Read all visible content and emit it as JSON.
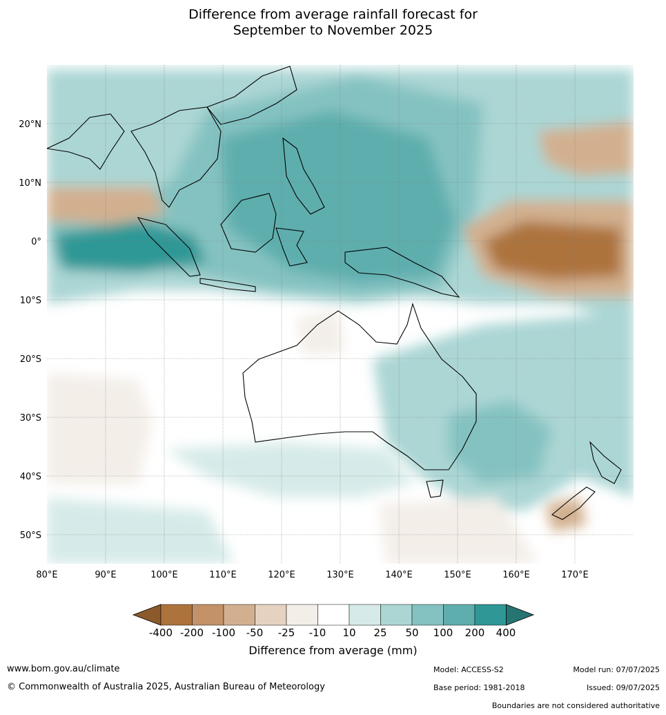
{
  "title_line1": "Difference from average rainfall forecast for",
  "title_line2": "September to November 2025",
  "map": {
    "lon_labels": [
      "80°E",
      "90°E",
      "100°E",
      "110°E",
      "120°E",
      "130°E",
      "140°E",
      "150°E",
      "160°E",
      "170°E"
    ],
    "lat_labels": [
      "20°N",
      "10°N",
      "0°",
      "10°S",
      "20°S",
      "30°S",
      "40°S",
      "50°S"
    ],
    "lon_range": [
      80,
      180
    ],
    "lat_range": [
      -55,
      30
    ]
  },
  "colorbar": {
    "ticks": [
      "-400",
      "-200",
      "-100",
      "-50",
      "-25",
      "-10",
      "10",
      "25",
      "50",
      "100",
      "200",
      "400"
    ],
    "colors": [
      "#8c5a2a",
      "#ad733c",
      "#c39268",
      "#d2b08f",
      "#e6d2c0",
      "#f3eee8",
      "#ffffff",
      "#d6ebe9",
      "#abd6d4",
      "#84c2c1",
      "#5faeae",
      "#2f9896",
      "#267572"
    ],
    "title": "Difference from average (mm)"
  },
  "footer": {
    "website": "www.bom.gov.au/climate",
    "copyright": "© Commonwealth of Australia 2025, Australian Bureau of Meteorology",
    "model": "Model: ACCESS-S2",
    "base_period": "Base period: 1981-2018",
    "model_run": "Model run: 07/07/2025",
    "issued": "Issued: 09/07/2025",
    "disclaimer": "Boundaries are not considered authoritative"
  }
}
